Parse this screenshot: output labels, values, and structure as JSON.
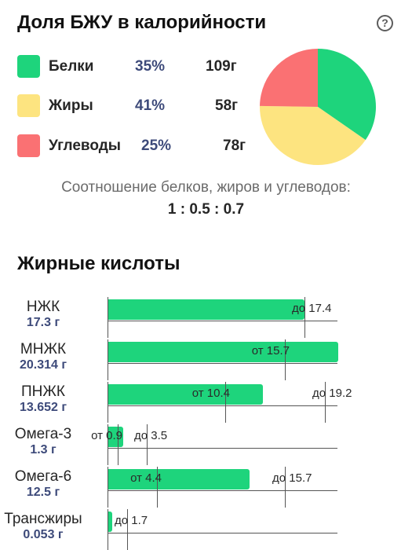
{
  "macros": {
    "title": "Доля БЖУ в калорийности",
    "help_icon": "question-circle-icon",
    "items": [
      {
        "label": "Белки",
        "percent": "35%",
        "grams": "109г",
        "color": "#1ed47c",
        "share": 35
      },
      {
        "label": "Жиры",
        "percent": "41%",
        "grams": "58г",
        "color": "#fde480",
        "share": 41
      },
      {
        "label": "Углеводы",
        "percent": "25%",
        "grams": "78г",
        "color": "#fa7173",
        "share": 25
      }
    ],
    "ratio_caption": "Соотношение белков, жиров и углеводов:",
    "ratio_value": "1 : 0.5 : 0.7"
  },
  "fatty_acids": {
    "title": "Жирные кислоты",
    "scale_max": 20.314,
    "rows": [
      {
        "name": "НЖК",
        "amount": "17.3 г",
        "value": 17.3,
        "min": null,
        "min_label": "",
        "max": 17.4,
        "max_label": "до 17.4"
      },
      {
        "name": "МНЖК",
        "amount": "20.314 г",
        "value": 20.314,
        "min": 15.7,
        "min_label": "от 15.7",
        "max": null,
        "max_label": ""
      },
      {
        "name": "ПНЖК",
        "amount": "13.652 г",
        "value": 13.652,
        "min": 10.4,
        "min_label": "от 10.4",
        "max": 19.2,
        "max_label": "до 19.2"
      },
      {
        "name": "Омега-3",
        "amount": "1.3 г",
        "value": 1.3,
        "min": 0.9,
        "min_label": "от 0.9",
        "max": 3.5,
        "max_label": "до 3.5"
      },
      {
        "name": "Омега-6",
        "amount": "12.5 г",
        "value": 12.5,
        "min": 4.4,
        "min_label": "от 4.4",
        "max": 15.7,
        "max_label": "до 15.7"
      },
      {
        "name": "Трансжиры",
        "amount": "0.053 г",
        "value": 0.053,
        "min": null,
        "min_label": "",
        "max": 1.7,
        "max_label": "до 1.7"
      }
    ]
  }
}
